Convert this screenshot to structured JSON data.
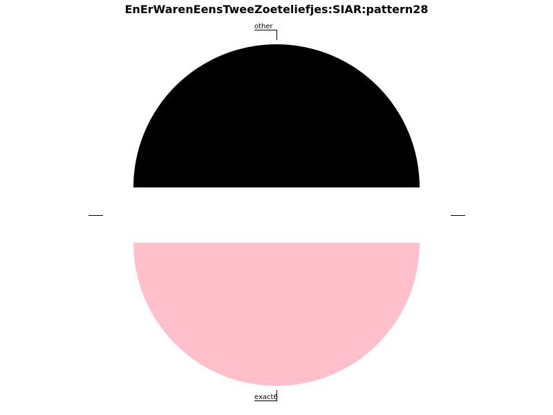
{
  "chart_data": {
    "type": "pie",
    "title": "EnErWarenEensTweeZoeteliefjes:SIAR:pattern28",
    "categories": [
      "other",
      "exact6"
    ],
    "values": [
      50,
      50
    ],
    "colors": [
      "#000000",
      "#ffc0cb"
    ],
    "exploded": true,
    "legend": "none"
  }
}
